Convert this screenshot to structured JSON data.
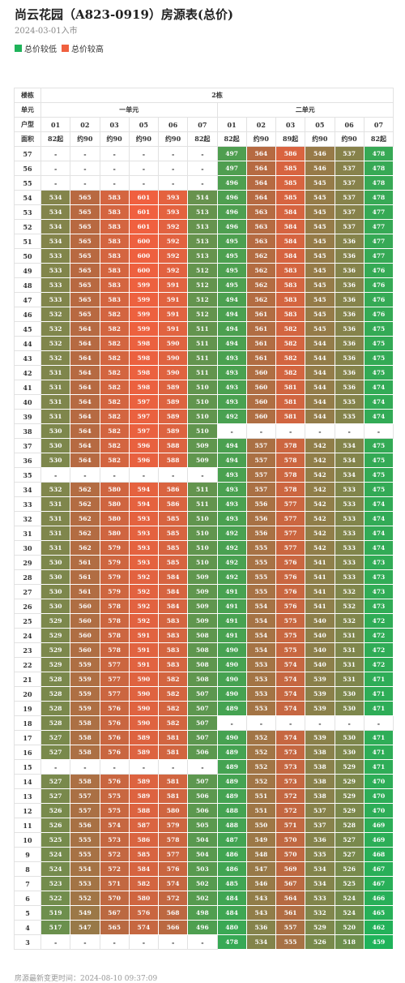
{
  "header": {
    "title": "尚云花园（A823-0919）房源表(总价)",
    "date_text": "2024-03-01入市"
  },
  "legend": {
    "items": [
      {
        "label": "总价较低",
        "color": "#1fb35a"
      },
      {
        "label": "总价较高",
        "color": "#f0603f"
      }
    ]
  },
  "table": {
    "labels": {
      "building": "楼栋",
      "unit": "单元",
      "type": "户型",
      "area": "面积"
    },
    "building": "2栋",
    "units": [
      "一单元",
      "二单元"
    ],
    "room_types": [
      "01",
      "02",
      "03",
      "05",
      "06",
      "07",
      "01",
      "02",
      "03",
      "05",
      "06",
      "07"
    ],
    "areas": [
      "82起",
      "约90",
      "约90",
      "约90",
      "约90",
      "82起",
      "82起",
      "约90",
      "89起",
      "约90",
      "约90",
      "82起"
    ],
    "empty_mark": "-",
    "price_min": 459,
    "price_max": 601,
    "rows": [
      {
        "floor": "57",
        "cells": [
          "-",
          "-",
          "-",
          "-",
          "-",
          "-",
          "497",
          "564",
          "586",
          "546",
          "537",
          "478"
        ]
      },
      {
        "floor": "56",
        "cells": [
          "-",
          "-",
          "-",
          "-",
          "-",
          "-",
          "497",
          "564",
          "585",
          "546",
          "537",
          "478"
        ]
      },
      {
        "floor": "55",
        "cells": [
          "-",
          "-",
          "-",
          "-",
          "-",
          "-",
          "496",
          "564",
          "585",
          "545",
          "537",
          "478"
        ]
      },
      {
        "floor": "54",
        "cells": [
          "534",
          "565",
          "583",
          "601",
          "593",
          "514",
          "496",
          "564",
          "585",
          "545",
          "537",
          "478"
        ]
      },
      {
        "floor": "53",
        "cells": [
          "534",
          "565",
          "583",
          "601",
          "593",
          "513",
          "496",
          "563",
          "584",
          "545",
          "537",
          "477"
        ]
      },
      {
        "floor": "52",
        "cells": [
          "534",
          "565",
          "583",
          "601",
          "592",
          "513",
          "496",
          "563",
          "584",
          "545",
          "537",
          "477"
        ]
      },
      {
        "floor": "51",
        "cells": [
          "534",
          "565",
          "583",
          "600",
          "592",
          "513",
          "495",
          "563",
          "584",
          "545",
          "536",
          "477"
        ]
      },
      {
        "floor": "50",
        "cells": [
          "533",
          "565",
          "583",
          "600",
          "592",
          "513",
          "495",
          "562",
          "584",
          "545",
          "536",
          "477"
        ]
      },
      {
        "floor": "49",
        "cells": [
          "533",
          "565",
          "583",
          "600",
          "592",
          "512",
          "495",
          "562",
          "583",
          "545",
          "536",
          "476"
        ]
      },
      {
        "floor": "48",
        "cells": [
          "533",
          "565",
          "583",
          "599",
          "591",
          "512",
          "495",
          "562",
          "583",
          "545",
          "536",
          "476"
        ]
      },
      {
        "floor": "47",
        "cells": [
          "533",
          "565",
          "583",
          "599",
          "591",
          "512",
          "494",
          "562",
          "583",
          "545",
          "536",
          "476"
        ]
      },
      {
        "floor": "46",
        "cells": [
          "532",
          "565",
          "582",
          "599",
          "591",
          "512",
          "494",
          "561",
          "583",
          "545",
          "536",
          "476"
        ]
      },
      {
        "floor": "45",
        "cells": [
          "532",
          "564",
          "582",
          "599",
          "591",
          "511",
          "494",
          "561",
          "582",
          "545",
          "536",
          "475"
        ]
      },
      {
        "floor": "44",
        "cells": [
          "532",
          "564",
          "582",
          "598",
          "590",
          "511",
          "494",
          "561",
          "582",
          "544",
          "536",
          "475"
        ]
      },
      {
        "floor": "43",
        "cells": [
          "532",
          "564",
          "582",
          "598",
          "590",
          "511",
          "493",
          "561",
          "582",
          "544",
          "536",
          "475"
        ]
      },
      {
        "floor": "42",
        "cells": [
          "531",
          "564",
          "582",
          "598",
          "590",
          "511",
          "493",
          "560",
          "582",
          "544",
          "536",
          "475"
        ]
      },
      {
        "floor": "41",
        "cells": [
          "531",
          "564",
          "582",
          "598",
          "589",
          "510",
          "493",
          "560",
          "581",
          "544",
          "536",
          "474"
        ]
      },
      {
        "floor": "40",
        "cells": [
          "531",
          "564",
          "582",
          "597",
          "589",
          "510",
          "493",
          "560",
          "581",
          "544",
          "535",
          "474"
        ]
      },
      {
        "floor": "39",
        "cells": [
          "531",
          "564",
          "582",
          "597",
          "589",
          "510",
          "492",
          "560",
          "581",
          "544",
          "535",
          "474"
        ]
      },
      {
        "floor": "38",
        "cells": [
          "530",
          "564",
          "582",
          "597",
          "589",
          "510",
          "-",
          "-",
          "-",
          "-",
          "-",
          "-"
        ]
      },
      {
        "floor": "37",
        "cells": [
          "530",
          "564",
          "582",
          "596",
          "588",
          "509",
          "494",
          "557",
          "578",
          "542",
          "534",
          "475"
        ]
      },
      {
        "floor": "36",
        "cells": [
          "530",
          "564",
          "582",
          "596",
          "588",
          "509",
          "494",
          "557",
          "578",
          "542",
          "534",
          "475"
        ]
      },
      {
        "floor": "35",
        "cells": [
          "-",
          "-",
          "-",
          "-",
          "-",
          "-",
          "493",
          "557",
          "578",
          "542",
          "534",
          "475"
        ]
      },
      {
        "floor": "34",
        "cells": [
          "532",
          "562",
          "580",
          "594",
          "586",
          "511",
          "493",
          "557",
          "578",
          "542",
          "533",
          "475"
        ]
      },
      {
        "floor": "33",
        "cells": [
          "531",
          "562",
          "580",
          "594",
          "586",
          "511",
          "493",
          "556",
          "577",
          "542",
          "533",
          "474"
        ]
      },
      {
        "floor": "32",
        "cells": [
          "531",
          "562",
          "580",
          "593",
          "585",
          "510",
          "493",
          "556",
          "577",
          "542",
          "533",
          "474"
        ]
      },
      {
        "floor": "31",
        "cells": [
          "531",
          "562",
          "580",
          "593",
          "585",
          "510",
          "492",
          "556",
          "577",
          "542",
          "533",
          "474"
        ]
      },
      {
        "floor": "30",
        "cells": [
          "531",
          "562",
          "579",
          "593",
          "585",
          "510",
          "492",
          "555",
          "577",
          "542",
          "533",
          "474"
        ]
      },
      {
        "floor": "29",
        "cells": [
          "530",
          "561",
          "579",
          "593",
          "585",
          "510",
          "492",
          "555",
          "576",
          "541",
          "533",
          "473"
        ]
      },
      {
        "floor": "28",
        "cells": [
          "530",
          "561",
          "579",
          "592",
          "584",
          "509",
          "492",
          "555",
          "576",
          "541",
          "533",
          "473"
        ]
      },
      {
        "floor": "27",
        "cells": [
          "530",
          "561",
          "579",
          "592",
          "584",
          "509",
          "491",
          "555",
          "576",
          "541",
          "532",
          "473"
        ]
      },
      {
        "floor": "26",
        "cells": [
          "530",
          "560",
          "578",
          "592",
          "584",
          "509",
          "491",
          "554",
          "576",
          "541",
          "532",
          "473"
        ]
      },
      {
        "floor": "25",
        "cells": [
          "529",
          "560",
          "578",
          "592",
          "583",
          "509",
          "491",
          "554",
          "575",
          "540",
          "532",
          "472"
        ]
      },
      {
        "floor": "24",
        "cells": [
          "529",
          "560",
          "578",
          "591",
          "583",
          "508",
          "491",
          "554",
          "575",
          "540",
          "531",
          "472"
        ]
      },
      {
        "floor": "23",
        "cells": [
          "529",
          "560",
          "578",
          "591",
          "583",
          "508",
          "490",
          "554",
          "575",
          "540",
          "531",
          "472"
        ]
      },
      {
        "floor": "22",
        "cells": [
          "529",
          "559",
          "577",
          "591",
          "583",
          "508",
          "490",
          "553",
          "574",
          "540",
          "531",
          "472"
        ]
      },
      {
        "floor": "21",
        "cells": [
          "528",
          "559",
          "577",
          "590",
          "582",
          "508",
          "490",
          "553",
          "574",
          "539",
          "531",
          "471"
        ]
      },
      {
        "floor": "20",
        "cells": [
          "528",
          "559",
          "577",
          "590",
          "582",
          "507",
          "490",
          "553",
          "574",
          "539",
          "530",
          "471"
        ]
      },
      {
        "floor": "19",
        "cells": [
          "528",
          "559",
          "576",
          "590",
          "582",
          "507",
          "489",
          "553",
          "574",
          "539",
          "530",
          "471"
        ]
      },
      {
        "floor": "18",
        "cells": [
          "528",
          "558",
          "576",
          "590",
          "582",
          "507",
          "-",
          "-",
          "-",
          "-",
          "-",
          "-"
        ]
      },
      {
        "floor": "17",
        "cells": [
          "527",
          "558",
          "576",
          "589",
          "581",
          "507",
          "490",
          "552",
          "574",
          "539",
          "530",
          "471"
        ]
      },
      {
        "floor": "16",
        "cells": [
          "527",
          "558",
          "576",
          "589",
          "581",
          "506",
          "489",
          "552",
          "573",
          "538",
          "530",
          "471"
        ]
      },
      {
        "floor": "15",
        "cells": [
          "-",
          "-",
          "-",
          "-",
          "-",
          "-",
          "489",
          "552",
          "573",
          "538",
          "529",
          "471"
        ]
      },
      {
        "floor": "14",
        "cells": [
          "527",
          "558",
          "576",
          "589",
          "581",
          "507",
          "489",
          "552",
          "573",
          "538",
          "529",
          "470"
        ]
      },
      {
        "floor": "13",
        "cells": [
          "527",
          "557",
          "575",
          "589",
          "581",
          "506",
          "489",
          "551",
          "572",
          "538",
          "529",
          "470"
        ]
      },
      {
        "floor": "12",
        "cells": [
          "526",
          "557",
          "575",
          "588",
          "580",
          "506",
          "488",
          "551",
          "572",
          "537",
          "529",
          "470"
        ]
      },
      {
        "floor": "11",
        "cells": [
          "526",
          "556",
          "574",
          "587",
          "579",
          "505",
          "488",
          "550",
          "571",
          "537",
          "528",
          "469"
        ]
      },
      {
        "floor": "10",
        "cells": [
          "525",
          "555",
          "573",
          "586",
          "578",
          "504",
          "487",
          "549",
          "570",
          "536",
          "527",
          "469"
        ]
      },
      {
        "floor": "9",
        "cells": [
          "524",
          "555",
          "572",
          "585",
          "577",
          "504",
          "486",
          "548",
          "570",
          "535",
          "527",
          "468"
        ]
      },
      {
        "floor": "8",
        "cells": [
          "524",
          "554",
          "572",
          "584",
          "576",
          "503",
          "486",
          "547",
          "569",
          "534",
          "526",
          "467"
        ]
      },
      {
        "floor": "7",
        "cells": [
          "523",
          "553",
          "571",
          "582",
          "574",
          "502",
          "485",
          "546",
          "567",
          "534",
          "525",
          "467"
        ]
      },
      {
        "floor": "6",
        "cells": [
          "522",
          "552",
          "570",
          "580",
          "572",
          "502",
          "484",
          "543",
          "564",
          "533",
          "524",
          "466"
        ]
      },
      {
        "floor": "5",
        "cells": [
          "519",
          "549",
          "567",
          "576",
          "568",
          "498",
          "484",
          "543",
          "561",
          "532",
          "524",
          "465"
        ]
      },
      {
        "floor": "4",
        "cells": [
          "517",
          "547",
          "565",
          "574",
          "566",
          "496",
          "480",
          "536",
          "557",
          "529",
          "520",
          "462"
        ]
      },
      {
        "floor": "3",
        "cells": [
          "-",
          "-",
          "-",
          "-",
          "-",
          "-",
          "478",
          "534",
          "555",
          "526",
          "518",
          "459"
        ]
      }
    ]
  },
  "footer": {
    "text": "房源最新变更时间：2024-08-10 09:37:09"
  }
}
